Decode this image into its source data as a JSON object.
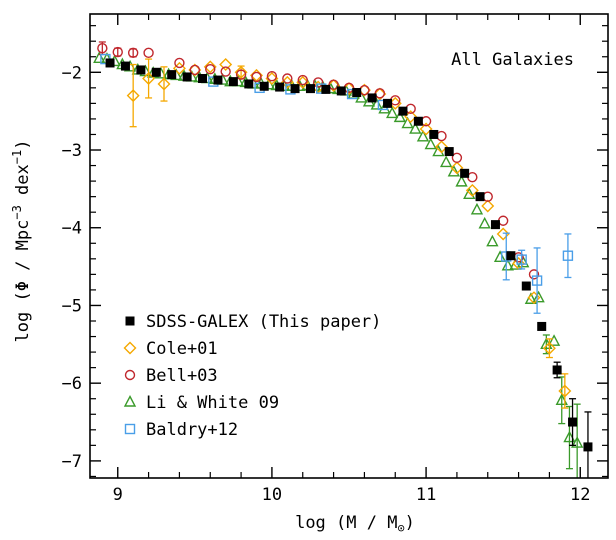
{
  "chart_data": {
    "type": "scatter",
    "annotation": "All Galaxies",
    "xlabel": "log (M / M",
    "xlabel_symbol": "⊙",
    "xlabel_close": ")",
    "ylabel": "log (Φ / Mpc",
    "ylabel_exp1": "−3",
    "ylabel_mid": " dex",
    "ylabel_exp2": "−1",
    "ylabel_close": ")",
    "xlim": [
      8.82,
      12.18
    ],
    "ylim": [
      -7.22,
      -1.25
    ],
    "xticks": [
      {
        "value": 9,
        "label": "9"
      },
      {
        "value": 10,
        "label": "10"
      },
      {
        "value": 11,
        "label": "11"
      },
      {
        "value": 12,
        "label": "12"
      }
    ],
    "yticks": [
      {
        "value": -2,
        "label": "−2"
      },
      {
        "value": -3,
        "label": "−3"
      },
      {
        "value": -4,
        "label": "−4"
      },
      {
        "value": -5,
        "label": "−5"
      },
      {
        "value": -6,
        "label": "−6"
      },
      {
        "value": -7,
        "label": "−7"
      }
    ],
    "x_minor_step": 0.2,
    "y_minor_step": 0.2,
    "legend_position": "bottom-left",
    "series": [
      {
        "name": "SDSS-GALEX (This paper)",
        "marker": "filled-square",
        "color": "#000000",
        "points": [
          [
            8.95,
            -1.88
          ],
          [
            9.05,
            -1.92
          ],
          [
            9.15,
            -1.97
          ],
          [
            9.25,
            -2.0
          ],
          [
            9.35,
            -2.03
          ],
          [
            9.45,
            -2.06
          ],
          [
            9.55,
            -2.08
          ],
          [
            9.65,
            -2.1
          ],
          [
            9.75,
            -2.12
          ],
          [
            9.85,
            -2.15
          ],
          [
            9.95,
            -2.18
          ],
          [
            10.05,
            -2.19
          ],
          [
            10.15,
            -2.21
          ],
          [
            10.25,
            -2.21
          ],
          [
            10.35,
            -2.22
          ],
          [
            10.45,
            -2.24
          ],
          [
            10.55,
            -2.26
          ],
          [
            10.65,
            -2.33
          ],
          [
            10.75,
            -2.4
          ],
          [
            10.85,
            -2.5
          ],
          [
            10.95,
            -2.63
          ],
          [
            11.05,
            -2.8
          ],
          [
            11.15,
            -3.02
          ],
          [
            11.25,
            -3.3
          ],
          [
            11.35,
            -3.6
          ],
          [
            11.45,
            -3.96
          ],
          [
            11.55,
            -4.36
          ],
          [
            11.65,
            -4.75
          ],
          [
            11.75,
            -5.27
          ],
          [
            11.85,
            -5.83
          ],
          [
            11.95,
            -6.5
          ],
          [
            12.05,
            -6.82
          ]
        ],
        "errors": [
          [
            11.85,
            -5.83,
            0.1
          ],
          [
            11.95,
            -6.5,
            0.3
          ],
          [
            12.05,
            -6.82,
            0.45
          ]
        ]
      },
      {
        "name": "Cole+01",
        "marker": "open-diamond",
        "color": "#f5a800",
        "points": [
          [
            9.1,
            -2.3
          ],
          [
            9.2,
            -2.08
          ],
          [
            9.3,
            -2.15
          ],
          [
            9.4,
            -1.95
          ],
          [
            9.5,
            -1.97
          ],
          [
            9.6,
            -1.93
          ],
          [
            9.7,
            -1.9
          ],
          [
            9.8,
            -2.0
          ],
          [
            9.9,
            -2.04
          ],
          [
            10.0,
            -2.08
          ],
          [
            10.1,
            -2.13
          ],
          [
            10.2,
            -2.13
          ],
          [
            10.3,
            -2.19
          ],
          [
            10.4,
            -2.17
          ],
          [
            10.5,
            -2.21
          ],
          [
            10.6,
            -2.23
          ],
          [
            10.7,
            -2.28
          ],
          [
            10.8,
            -2.4
          ],
          [
            10.9,
            -2.57
          ],
          [
            11.0,
            -2.73
          ],
          [
            11.1,
            -2.96
          ],
          [
            11.2,
            -3.23
          ],
          [
            11.3,
            -3.52
          ],
          [
            11.4,
            -3.72
          ],
          [
            11.5,
            -4.08
          ],
          [
            11.6,
            -4.46
          ],
          [
            11.7,
            -4.9
          ],
          [
            11.8,
            -5.55
          ],
          [
            11.9,
            -6.1
          ]
        ],
        "errors": [
          [
            9.1,
            -2.3,
            0.4
          ],
          [
            9.2,
            -2.08,
            0.25
          ],
          [
            9.3,
            -2.15,
            0.22
          ],
          [
            9.8,
            -2.0,
            0.08
          ],
          [
            11.8,
            -5.55,
            0.12
          ],
          [
            11.9,
            -6.1,
            0.22
          ]
        ]
      },
      {
        "name": "Bell+03",
        "marker": "open-circle",
        "color": "#c0272d",
        "points": [
          [
            8.9,
            -1.69
          ],
          [
            9.0,
            -1.74
          ],
          [
            9.1,
            -1.75
          ],
          [
            9.2,
            -1.75
          ],
          [
            9.4,
            -1.88
          ],
          [
            9.5,
            -1.97
          ],
          [
            9.6,
            -1.96
          ],
          [
            9.7,
            -1.99
          ],
          [
            9.8,
            -2.03
          ],
          [
            9.9,
            -2.06
          ],
          [
            10.0,
            -2.05
          ],
          [
            10.1,
            -2.08
          ],
          [
            10.2,
            -2.1
          ],
          [
            10.3,
            -2.13
          ],
          [
            10.4,
            -2.16
          ],
          [
            10.5,
            -2.2
          ],
          [
            10.6,
            -2.23
          ],
          [
            10.7,
            -2.27
          ],
          [
            10.8,
            -2.36
          ],
          [
            10.9,
            -2.47
          ],
          [
            11.0,
            -2.63
          ],
          [
            11.1,
            -2.82
          ],
          [
            11.2,
            -3.1
          ],
          [
            11.3,
            -3.35
          ],
          [
            11.4,
            -3.6
          ],
          [
            11.5,
            -3.91
          ],
          [
            11.6,
            -4.38
          ],
          [
            11.7,
            -4.6
          ]
        ],
        "errors": [
          [
            8.9,
            -1.69,
            0.08
          ],
          [
            9.0,
            -1.74,
            0.05
          ],
          [
            9.1,
            -1.75,
            0.05
          ]
        ]
      },
      {
        "name": "Li & White 09",
        "marker": "open-triangle",
        "color": "#3a9a2a",
        "points": [
          [
            8.88,
            -1.82
          ],
          [
            8.93,
            -1.83
          ],
          [
            8.98,
            -1.86
          ],
          [
            9.03,
            -1.9
          ],
          [
            9.08,
            -1.93
          ],
          [
            9.13,
            -1.97
          ],
          [
            9.18,
            -1.99
          ],
          [
            9.23,
            -2.01
          ],
          [
            9.28,
            -2.02
          ],
          [
            9.33,
            -2.03
          ],
          [
            9.38,
            -2.04
          ],
          [
            9.43,
            -2.05
          ],
          [
            9.48,
            -2.06
          ],
          [
            9.53,
            -2.07
          ],
          [
            9.58,
            -2.08
          ],
          [
            9.63,
            -2.09
          ],
          [
            9.68,
            -2.1
          ],
          [
            9.73,
            -2.12
          ],
          [
            9.78,
            -2.12
          ],
          [
            9.83,
            -2.13
          ],
          [
            9.88,
            -2.15
          ],
          [
            9.93,
            -2.15
          ],
          [
            9.98,
            -2.16
          ],
          [
            10.03,
            -2.17
          ],
          [
            10.08,
            -2.18
          ],
          [
            10.13,
            -2.18
          ],
          [
            10.18,
            -2.18
          ],
          [
            10.23,
            -2.17
          ],
          [
            10.28,
            -2.18
          ],
          [
            10.33,
            -2.19
          ],
          [
            10.38,
            -2.21
          ],
          [
            10.43,
            -2.22
          ],
          [
            10.48,
            -2.24
          ],
          [
            10.53,
            -2.28
          ],
          [
            10.58,
            -2.33
          ],
          [
            10.63,
            -2.38
          ],
          [
            10.68,
            -2.42
          ],
          [
            10.73,
            -2.47
          ],
          [
            10.78,
            -2.53
          ],
          [
            10.83,
            -2.58
          ],
          [
            10.88,
            -2.66
          ],
          [
            10.93,
            -2.73
          ],
          [
            10.98,
            -2.83
          ],
          [
            11.03,
            -2.93
          ],
          [
            11.08,
            -3.02
          ],
          [
            11.13,
            -3.16
          ],
          [
            11.18,
            -3.28
          ],
          [
            11.23,
            -3.41
          ],
          [
            11.28,
            -3.57
          ],
          [
            11.33,
            -3.77
          ],
          [
            11.38,
            -3.95
          ],
          [
            11.43,
            -4.18
          ],
          [
            11.48,
            -4.38
          ],
          [
            11.53,
            -4.49
          ],
          [
            11.58,
            -4.48
          ],
          [
            11.63,
            -4.45
          ],
          [
            11.68,
            -4.92
          ],
          [
            11.73,
            -4.9
          ],
          [
            11.78,
            -5.5
          ],
          [
            11.83,
            -5.46
          ],
          [
            11.88,
            -6.22
          ],
          [
            11.93,
            -6.7
          ],
          [
            11.98,
            -6.77
          ]
        ],
        "errors": [
          [
            11.78,
            -5.5,
            0.12
          ],
          [
            11.88,
            -6.22,
            0.3
          ],
          [
            11.93,
            -6.7,
            0.4
          ],
          [
            11.98,
            -6.77,
            0.5
          ]
        ]
      },
      {
        "name": "Baldry+12",
        "marker": "open-square",
        "color": "#4a9ee8",
        "points": [
          [
            8.92,
            -1.83
          ],
          [
            9.62,
            -2.12
          ],
          [
            9.92,
            -2.2
          ],
          [
            10.12,
            -2.22
          ],
          [
            10.32,
            -2.21
          ],
          [
            10.52,
            -2.28
          ],
          [
            10.72,
            -2.42
          ],
          [
            11.52,
            -4.37
          ],
          [
            11.62,
            -4.41
          ],
          [
            11.72,
            -4.68
          ],
          [
            11.92,
            -4.36
          ]
        ],
        "errors": [
          [
            11.52,
            -4.37,
            0.3
          ],
          [
            11.62,
            -4.41,
            0.12
          ],
          [
            11.72,
            -4.68,
            0.42
          ],
          [
            11.92,
            -4.36,
            0.28
          ]
        ]
      }
    ]
  }
}
